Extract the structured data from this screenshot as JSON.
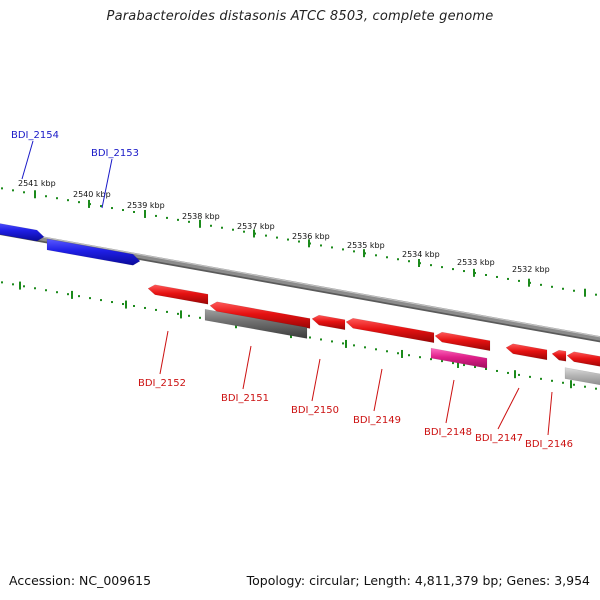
{
  "title": "Parabacteroides distasonis ATCC 8503, complete genome",
  "footer": {
    "accession": "Accession: NC_009615",
    "topology": "Topology: circular; Length: 4,811,379 bp; Genes: 3,954"
  },
  "colors": {
    "reverse_strand_gene": "#1f1fe6",
    "forward_strand_gene": "#e61212",
    "grey_gene": "#6d6d6d",
    "light_grey_gene": "#b4b4b4",
    "highlight_gene": "#e0208a",
    "tick_green": "#1b8a1b",
    "backbone": "#8c8c8c",
    "label_blue": "#1a1ac8",
    "label_red": "#cc1111"
  },
  "scale": {
    "unit": "kbp",
    "labels": [
      "2541 kbp",
      "2540 kbp",
      "2539 kbp",
      "2538 kbp",
      "2537 kbp",
      "2536 kbp",
      "2535 kbp",
      "2534 kbp",
      "2533 kbp",
      "2532 kbp"
    ]
  },
  "genes": [
    {
      "id": "BDI_2154",
      "strand": "reverse",
      "color": "reverse_strand_gene"
    },
    {
      "id": "BDI_2153",
      "strand": "reverse",
      "color": "reverse_strand_gene"
    },
    {
      "id": "BDI_2152",
      "strand": "forward",
      "color": "forward_strand_gene"
    },
    {
      "id": "BDI_2151",
      "strand": "forward",
      "color": "forward_strand_gene"
    },
    {
      "id": "BDI_2150",
      "strand": "forward",
      "color": "forward_strand_gene"
    },
    {
      "id": "BDI_2149",
      "strand": "forward",
      "color": "forward_strand_gene"
    },
    {
      "id": "BDI_2148",
      "strand": "forward",
      "color": "forward_strand_gene"
    },
    {
      "id": "BDI_2147",
      "strand": "forward",
      "color": "forward_strand_gene"
    },
    {
      "id": "BDI_2146",
      "strand": "forward",
      "color": "forward_strand_gene"
    }
  ],
  "extra_features": [
    {
      "name": "grey-feature",
      "color": "grey_gene"
    },
    {
      "name": "highlight-feature",
      "color": "highlight_gene"
    },
    {
      "name": "light-grey-feature",
      "color": "light_grey_gene"
    }
  ]
}
